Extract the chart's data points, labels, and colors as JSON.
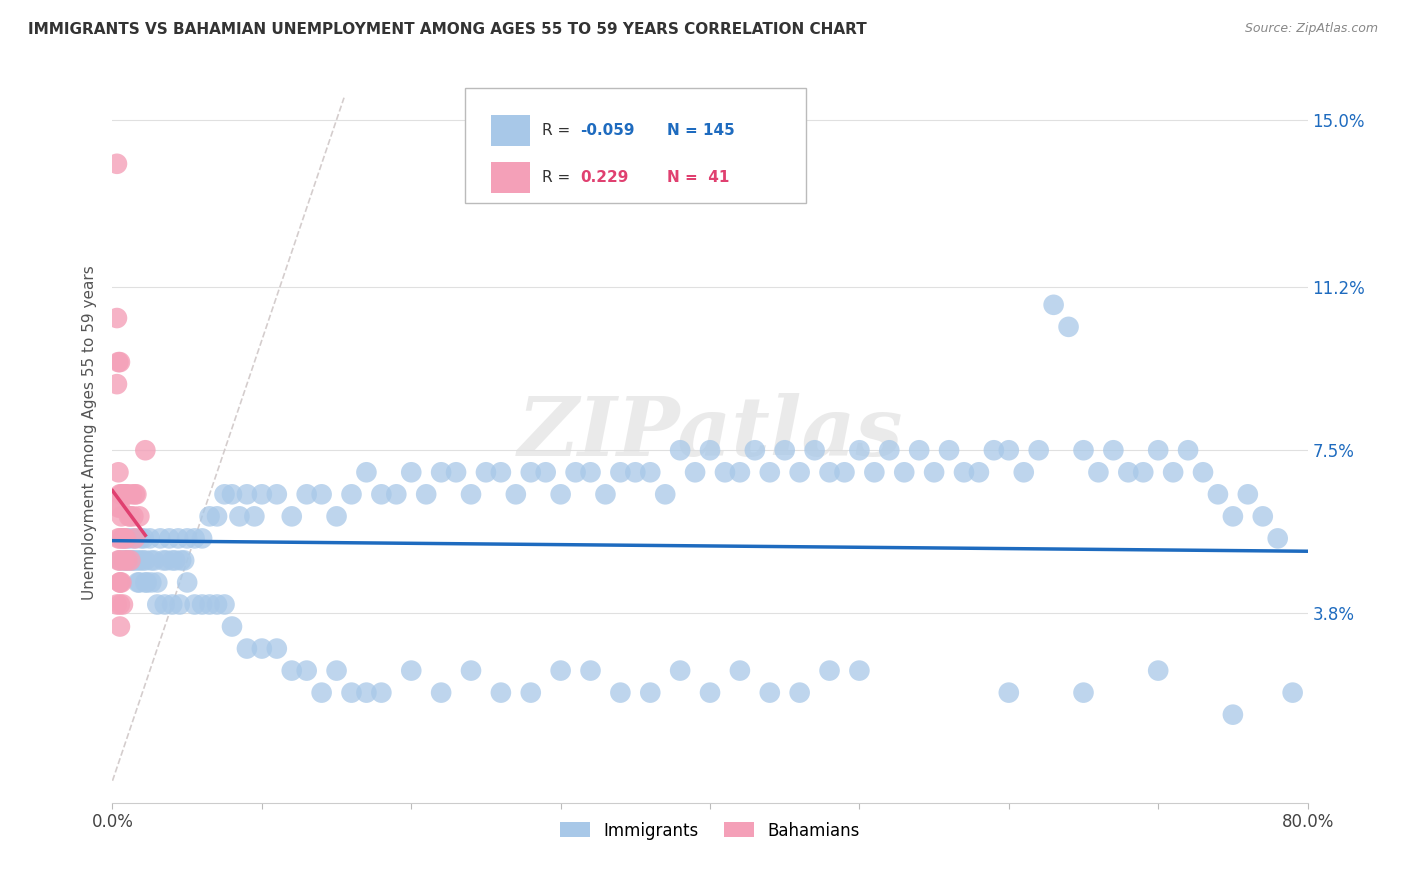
{
  "title": "IMMIGRANTS VS BAHAMIAN UNEMPLOYMENT AMONG AGES 55 TO 59 YEARS CORRELATION CHART",
  "source": "Source: ZipAtlas.com",
  "ylabel": "Unemployment Among Ages 55 to 59 years",
  "xlim": [
    0.0,
    0.8
  ],
  "ylim": [
    -0.005,
    0.163
  ],
  "xticks": [
    0.0,
    0.1,
    0.2,
    0.3,
    0.4,
    0.5,
    0.6,
    0.7,
    0.8
  ],
  "ytick_positions": [
    0.038,
    0.075,
    0.112,
    0.15
  ],
  "ytick_labels": [
    "3.8%",
    "7.5%",
    "11.2%",
    "15.0%"
  ],
  "immigrants_color": "#a8c8e8",
  "bahamians_color": "#f4a0b8",
  "immigrants_line_color": "#1e6bbf",
  "bahamians_line_color": "#e04070",
  "diagonal_color": "#d0c8c8",
  "watermark": "ZIPatlas",
  "background_color": "#ffffff",
  "imm_x": [
    0.005,
    0.007,
    0.008,
    0.009,
    0.01,
    0.011,
    0.012,
    0.013,
    0.014,
    0.015,
    0.016,
    0.017,
    0.018,
    0.019,
    0.02,
    0.021,
    0.022,
    0.023,
    0.025,
    0.026,
    0.028,
    0.03,
    0.032,
    0.034,
    0.036,
    0.038,
    0.04,
    0.042,
    0.044,
    0.046,
    0.048,
    0.05,
    0.055,
    0.06,
    0.065,
    0.07,
    0.075,
    0.08,
    0.085,
    0.09,
    0.095,
    0.1,
    0.11,
    0.12,
    0.13,
    0.14,
    0.15,
    0.16,
    0.17,
    0.18,
    0.19,
    0.2,
    0.21,
    0.22,
    0.23,
    0.24,
    0.25,
    0.26,
    0.27,
    0.28,
    0.29,
    0.3,
    0.31,
    0.32,
    0.33,
    0.34,
    0.35,
    0.36,
    0.37,
    0.38,
    0.39,
    0.4,
    0.41,
    0.42,
    0.43,
    0.44,
    0.45,
    0.46,
    0.47,
    0.48,
    0.49,
    0.5,
    0.51,
    0.52,
    0.53,
    0.54,
    0.55,
    0.56,
    0.57,
    0.58,
    0.59,
    0.6,
    0.61,
    0.62,
    0.63,
    0.64,
    0.65,
    0.66,
    0.67,
    0.68,
    0.69,
    0.7,
    0.71,
    0.72,
    0.73,
    0.74,
    0.75,
    0.76,
    0.77,
    0.78,
    0.018,
    0.022,
    0.026,
    0.03,
    0.035,
    0.04,
    0.045,
    0.05,
    0.055,
    0.06,
    0.065,
    0.07,
    0.075,
    0.08,
    0.09,
    0.1,
    0.11,
    0.12,
    0.13,
    0.14,
    0.15,
    0.16,
    0.17,
    0.18,
    0.2,
    0.22,
    0.24,
    0.26,
    0.28,
    0.3,
    0.32,
    0.34,
    0.36,
    0.38,
    0.4,
    0.42,
    0.44,
    0.46,
    0.48,
    0.5,
    0.6,
    0.65,
    0.7,
    0.75,
    0.79
  ],
  "imm_y": [
    0.05,
    0.055,
    0.05,
    0.05,
    0.055,
    0.05,
    0.055,
    0.05,
    0.05,
    0.055,
    0.05,
    0.045,
    0.05,
    0.055,
    0.05,
    0.055,
    0.05,
    0.045,
    0.055,
    0.05,
    0.05,
    0.045,
    0.055,
    0.05,
    0.05,
    0.055,
    0.05,
    0.05,
    0.055,
    0.05,
    0.05,
    0.055,
    0.055,
    0.055,
    0.06,
    0.06,
    0.065,
    0.065,
    0.06,
    0.065,
    0.06,
    0.065,
    0.065,
    0.06,
    0.065,
    0.065,
    0.06,
    0.065,
    0.07,
    0.065,
    0.065,
    0.07,
    0.065,
    0.07,
    0.07,
    0.065,
    0.07,
    0.07,
    0.065,
    0.07,
    0.07,
    0.065,
    0.07,
    0.07,
    0.065,
    0.07,
    0.07,
    0.07,
    0.065,
    0.075,
    0.07,
    0.075,
    0.07,
    0.07,
    0.075,
    0.07,
    0.075,
    0.07,
    0.075,
    0.07,
    0.07,
    0.075,
    0.07,
    0.075,
    0.07,
    0.075,
    0.07,
    0.075,
    0.07,
    0.07,
    0.075,
    0.075,
    0.07,
    0.075,
    0.108,
    0.103,
    0.075,
    0.07,
    0.075,
    0.07,
    0.07,
    0.075,
    0.07,
    0.075,
    0.07,
    0.065,
    0.06,
    0.065,
    0.06,
    0.055,
    0.045,
    0.045,
    0.045,
    0.04,
    0.04,
    0.04,
    0.04,
    0.045,
    0.04,
    0.04,
    0.04,
    0.04,
    0.04,
    0.035,
    0.03,
    0.03,
    0.03,
    0.025,
    0.025,
    0.02,
    0.025,
    0.02,
    0.02,
    0.02,
    0.025,
    0.02,
    0.025,
    0.02,
    0.02,
    0.025,
    0.025,
    0.02,
    0.02,
    0.025,
    0.02,
    0.025,
    0.02,
    0.02,
    0.025,
    0.025,
    0.02,
    0.02,
    0.025,
    0.015,
    0.02
  ],
  "bah_x": [
    0.003,
    0.003,
    0.003,
    0.003,
    0.004,
    0.004,
    0.004,
    0.004,
    0.004,
    0.005,
    0.005,
    0.005,
    0.005,
    0.005,
    0.005,
    0.005,
    0.005,
    0.005,
    0.006,
    0.006,
    0.006,
    0.007,
    0.007,
    0.007,
    0.008,
    0.008,
    0.008,
    0.009,
    0.009,
    0.01,
    0.01,
    0.011,
    0.012,
    0.012,
    0.013,
    0.014,
    0.015,
    0.015,
    0.016,
    0.018,
    0.022
  ],
  "bah_y": [
    0.14,
    0.105,
    0.09,
    0.04,
    0.095,
    0.07,
    0.062,
    0.055,
    0.05,
    0.095,
    0.065,
    0.062,
    0.055,
    0.05,
    0.045,
    0.045,
    0.04,
    0.035,
    0.065,
    0.06,
    0.045,
    0.065,
    0.055,
    0.04,
    0.065,
    0.055,
    0.05,
    0.065,
    0.055,
    0.065,
    0.05,
    0.06,
    0.06,
    0.05,
    0.065,
    0.06,
    0.065,
    0.055,
    0.065,
    0.06,
    0.075
  ]
}
